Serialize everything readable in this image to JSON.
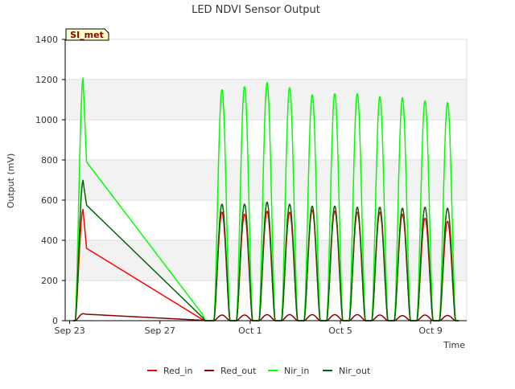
{
  "chart_data": {
    "type": "line",
    "title": "LED NDVI Sensor Output",
    "xlabel": "Time",
    "ylabel": "Output (mV)",
    "site_tag": "SI_met",
    "x_ticks": [
      "Sep 23",
      "Sep 27",
      "Oct 1",
      "Oct 5",
      "Oct 9"
    ],
    "x_tick_days": [
      0,
      4,
      8,
      12,
      16
    ],
    "xlim_days": [
      -0.2,
      17.6
    ],
    "ylim": [
      0,
      1400
    ],
    "y_ticks": [
      "0",
      "200",
      "400",
      "600",
      "800",
      "1000",
      "1200",
      "1400"
    ],
    "grid": true,
    "legend_position": "bottom",
    "colors": {
      "Red_in": "#ff0000",
      "Red_out": "#8b0000",
      "Nir_in": "#00ff00",
      "Nir_out": "#006400",
      "band": "#f2f2f2",
      "grid": "#dddddd",
      "tag_fill": "#ffffcc",
      "tag_text": "#8b0000"
    },
    "series": [
      {
        "name": "Red_in",
        "peaks": [
          555,
          540,
          530,
          545,
          540,
          550,
          545,
          540,
          540,
          530,
          510,
          495
        ]
      },
      {
        "name": "Red_out",
        "peaks": [
          35,
          28,
          28,
          30,
          30,
          30,
          30,
          30,
          28,
          25,
          28,
          26
        ]
      },
      {
        "name": "Nir_in",
        "peaks": [
          1210,
          1150,
          1165,
          1185,
          1160,
          1125,
          1130,
          1130,
          1115,
          1110,
          1095,
          1085
        ]
      },
      {
        "name": "Nir_out",
        "peaks": [
          700,
          580,
          580,
          590,
          580,
          570,
          570,
          565,
          565,
          560,
          565,
          560
        ]
      }
    ],
    "peak_days": [
      0.6,
      6.75,
      7.75,
      8.75,
      9.75,
      10.75,
      11.75,
      12.75,
      13.75,
      14.75,
      15.75,
      16.75
    ],
    "gap_after_first_peak": {
      "hold_until_day": 0.75,
      "hold_values": {
        "Red_in": 360,
        "Red_out": 32,
        "Nir_in": 790,
        "Nir_out": 575
      },
      "gap_end_day": 5.9,
      "gap_end_values": {
        "Red_in": 5,
        "Red_out": 2,
        "Nir_in": 30,
        "Nir_out": 15
      }
    }
  }
}
